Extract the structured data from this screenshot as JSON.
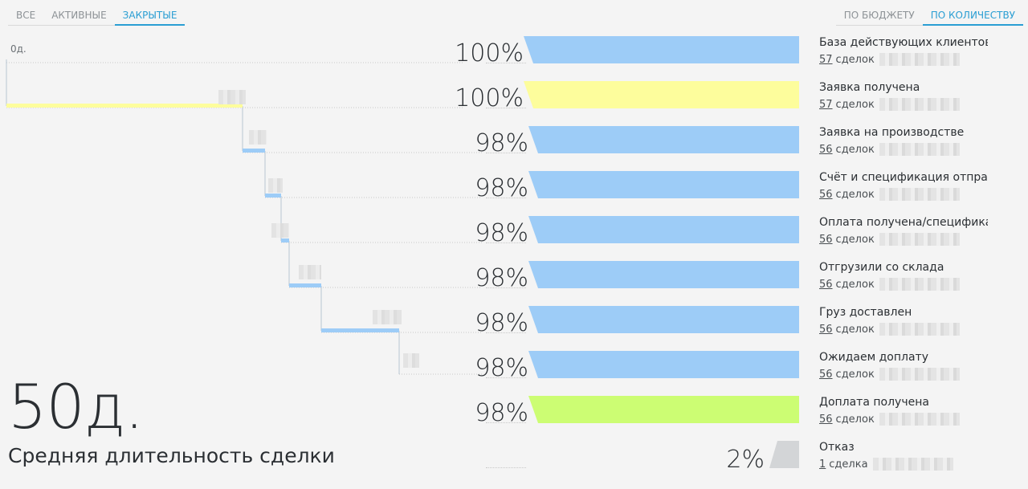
{
  "tabs_left": [
    {
      "label": "ВСЕ",
      "active": false
    },
    {
      "label": "АКТИВНЫЕ",
      "active": false
    },
    {
      "label": "ЗАКРЫТЫЕ",
      "active": true
    }
  ],
  "tabs_right": [
    {
      "label": "ПО БЮДЖЕТУ",
      "active": false
    },
    {
      "label": "ПО КОЛИЧЕСТВУ",
      "active": true
    }
  ],
  "timeline": {
    "start_label": "0д."
  },
  "summary": {
    "duration": "50д.",
    "label": "Средняя длительность сделки"
  },
  "funnel": [
    {
      "percent": "100%",
      "name": "База действующих клиентов",
      "count": "57",
      "unit": "сделок",
      "color": "#9dccf7"
    },
    {
      "percent": "100%",
      "name": "Заявка получена",
      "count": "57",
      "unit": "сделок",
      "color": "#fdfd9c"
    },
    {
      "percent": "98%",
      "name": "Заявка на производстве",
      "count": "56",
      "unit": "сделок",
      "color": "#9dccf7"
    },
    {
      "percent": "98%",
      "name": "Счёт и спецификация отправлены",
      "count": "56",
      "unit": "сделок",
      "color": "#9dccf7"
    },
    {
      "percent": "98%",
      "name": "Оплата получена/спецификация",
      "count": "56",
      "unit": "сделок",
      "color": "#9dccf7"
    },
    {
      "percent": "98%",
      "name": "Отгрузили со склада",
      "count": "56",
      "unit": "сделок",
      "color": "#9dccf7"
    },
    {
      "percent": "98%",
      "name": "Груз доставлен",
      "count": "56",
      "unit": "сделок",
      "color": "#9dccf7"
    },
    {
      "percent": "98%",
      "name": "Ожидаем доплату",
      "count": "56",
      "unit": "сделок",
      "color": "#9dccf7"
    },
    {
      "percent": "98%",
      "name": "Доплата получена",
      "count": "56",
      "unit": "сделок",
      "color": "#ccfd73"
    },
    {
      "percent": "2%",
      "name": "Отказ",
      "count": "1",
      "unit": "сделка",
      "color": "#d3d5d7"
    }
  ]
}
